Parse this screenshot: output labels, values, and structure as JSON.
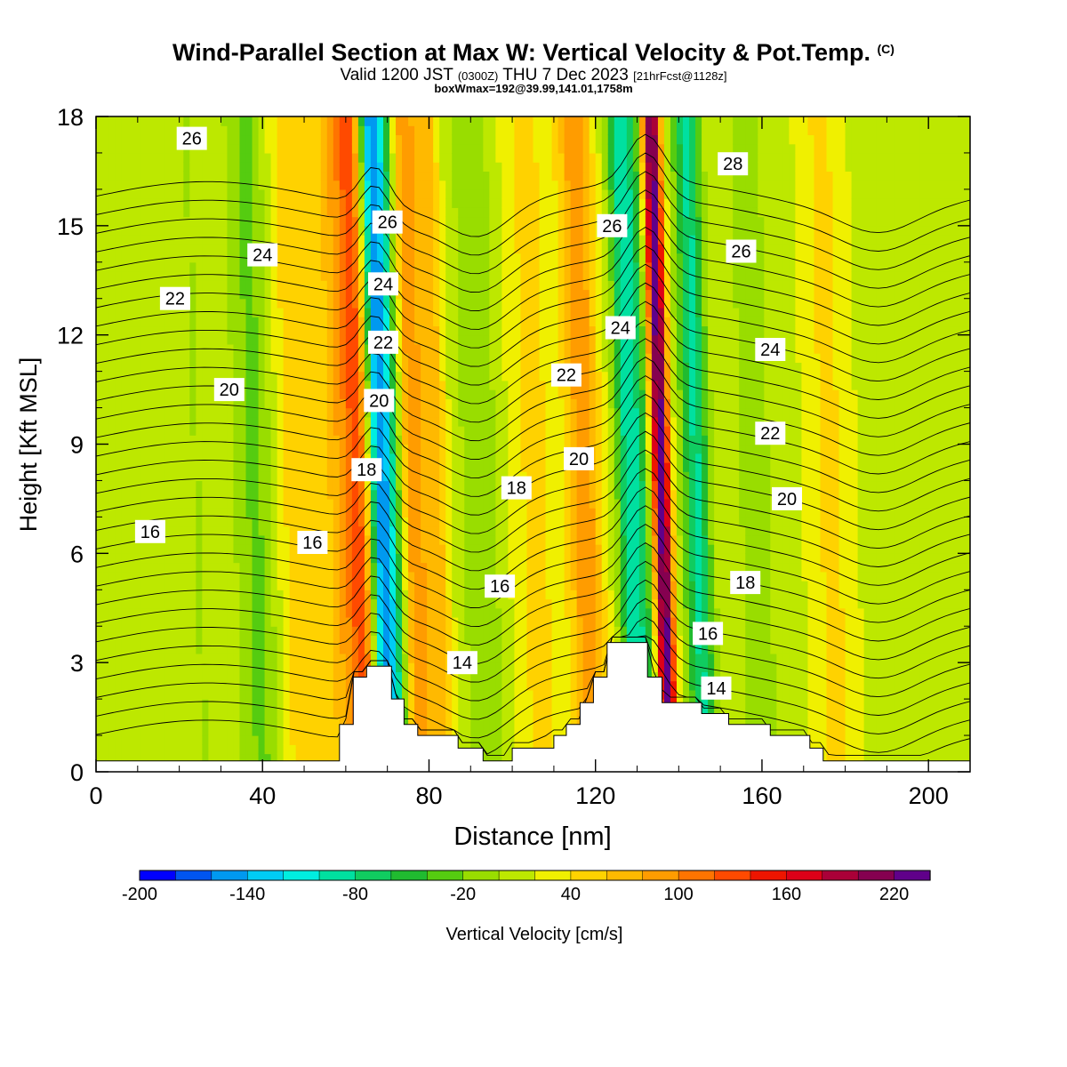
{
  "header": {
    "title_main": "Wind-Parallel Section at Max W: Vertical Velocity & Pot.Temp.",
    "title_copyright": "(C)",
    "subtitle_a": "Valid 1200 JST",
    "subtitle_utc": "(0300Z)",
    "subtitle_b": "THU 7 Dec 2023",
    "subtitle_fcst": "[21hrFcst@1128z]",
    "box_info": "boxWmax=192@39.99,141.01,1758m"
  },
  "chart_data": {
    "type": "heatmap",
    "title": "Wind-Parallel Section at Max W: Vertical Velocity & Pot.Temp.",
    "xlabel": "Distance [nm]",
    "ylabel": "Height [Kft MSL]",
    "xlim": [
      0,
      210
    ],
    "ylim": [
      0,
      18
    ],
    "xticks": [
      "0",
      "40",
      "80",
      "120",
      "160",
      "200"
    ],
    "yticks": [
      "0",
      "3",
      "6",
      "9",
      "12",
      "15",
      "18"
    ],
    "x_tick_values": [
      0,
      40,
      80,
      120,
      160,
      200
    ],
    "y_tick_values": [
      0,
      3,
      6,
      9,
      12,
      15,
      18
    ],
    "colorbar": {
      "label": "Vertical Velocity [cm/s]",
      "min": -200,
      "max": 260,
      "step": 20,
      "tick_labels": [
        "-200",
        "-140",
        "-80",
        "-20",
        "40",
        "100",
        "160",
        "220"
      ],
      "tick_values": [
        -200,
        -140,
        -80,
        -20,
        40,
        100,
        160,
        220
      ],
      "colors": [
        "#0000ff",
        "#0055f0",
        "#0099f0",
        "#00ccf5",
        "#00eee0",
        "#00e0a0",
        "#10cc60",
        "#20bb30",
        "#55cc10",
        "#99dd00",
        "#bde800",
        "#f0f000",
        "#ffd200",
        "#ffb900",
        "#ff9c00",
        "#ff7400",
        "#ff4a00",
        "#ee1500",
        "#dd0018",
        "#aa0038",
        "#850050",
        "#60008a"
      ]
    },
    "terrain_profile_kft": [
      [
        0,
        0.3
      ],
      [
        58.5,
        0.3
      ],
      [
        58.5,
        1.3
      ],
      [
        61.8,
        1.3
      ],
      [
        61.8,
        2.6
      ],
      [
        65,
        2.6
      ],
      [
        65,
        2.9
      ],
      [
        71,
        2.9
      ],
      [
        71,
        2.0
      ],
      [
        74,
        2.0
      ],
      [
        74,
        1.3
      ],
      [
        77.3,
        1.3
      ],
      [
        77.3,
        1.0
      ],
      [
        87,
        1.0
      ],
      [
        87,
        0.65
      ],
      [
        93,
        0.65
      ],
      [
        93,
        0.3
      ],
      [
        100,
        0.3
      ],
      [
        100,
        0.65
      ],
      [
        110,
        0.65
      ],
      [
        110,
        1.0
      ],
      [
        113,
        1.0
      ],
      [
        113,
        1.3
      ],
      [
        116.3,
        1.3
      ],
      [
        116.3,
        1.9
      ],
      [
        119.5,
        1.9
      ],
      [
        119.5,
        2.6
      ],
      [
        122.8,
        2.6
      ],
      [
        122.8,
        3.55
      ],
      [
        132.5,
        3.55
      ],
      [
        132.5,
        2.6
      ],
      [
        136,
        2.6
      ],
      [
        136,
        1.9
      ],
      [
        145.5,
        1.9
      ],
      [
        145.5,
        1.6
      ],
      [
        152,
        1.6
      ],
      [
        152,
        1.3
      ],
      [
        162,
        1.3
      ],
      [
        162,
        1.0
      ],
      [
        171.5,
        1.0
      ],
      [
        171.5,
        0.65
      ],
      [
        174.7,
        0.65
      ],
      [
        174.7,
        0.3
      ],
      [
        210,
        0.3
      ]
    ],
    "vertical_velocity_bands": [
      {
        "x": 13,
        "half_width": 6,
        "w": -5
      },
      {
        "x": 24,
        "half_width": 5,
        "w": -15
      },
      {
        "x": 38,
        "half_width": 5,
        "w": -40
      },
      {
        "x": 49,
        "half_width": 6,
        "w": 45
      },
      {
        "x": 59,
        "half_width": 4,
        "w": 60
      },
      {
        "x": 63,
        "half_width": 3,
        "w": 90
      },
      {
        "x": 68,
        "half_width": 2.6,
        "w": -170
      },
      {
        "x": 71,
        "half_width": 2,
        "w": -60
      },
      {
        "x": 76,
        "half_width": 2.5,
        "w": 80
      },
      {
        "x": 81,
        "half_width": 3,
        "w": 60
      },
      {
        "x": 92,
        "half_width": 5,
        "w": -30
      },
      {
        "x": 105,
        "half_width": 6,
        "w": 30
      },
      {
        "x": 117,
        "half_width": 4,
        "w": 80
      },
      {
        "x": 128,
        "half_width": 3,
        "w": -110
      },
      {
        "x": 131.5,
        "half_width": 2.2,
        "w": -40
      },
      {
        "x": 135.5,
        "half_width": 2.2,
        "w": 220
      },
      {
        "x": 139.5,
        "half_width": 2,
        "w": -10
      },
      {
        "x": 144,
        "half_width": 3,
        "w": -100
      },
      {
        "x": 158,
        "half_width": 4,
        "w": -30
      },
      {
        "x": 176,
        "half_width": 5,
        "w": 30
      },
      {
        "x": 195,
        "half_width": 6,
        "w": -15
      }
    ],
    "potential_temperature_labels": [
      {
        "text": "26",
        "x": 23,
        "y": 17.4
      },
      {
        "text": "24",
        "x": 40,
        "y": 14.2
      },
      {
        "text": "22",
        "x": 19,
        "y": 13.0
      },
      {
        "text": "20",
        "x": 32,
        "y": 10.5
      },
      {
        "text": "16",
        "x": 13,
        "y": 6.6
      },
      {
        "text": "16",
        "x": 52,
        "y": 6.3
      },
      {
        "text": "18",
        "x": 65,
        "y": 8.3
      },
      {
        "text": "20",
        "x": 68,
        "y": 10.2
      },
      {
        "text": "22",
        "x": 69,
        "y": 11.8
      },
      {
        "text": "24",
        "x": 69,
        "y": 13.4
      },
      {
        "text": "26",
        "x": 70,
        "y": 15.1
      },
      {
        "text": "14",
        "x": 88,
        "y": 3.0
      },
      {
        "text": "16",
        "x": 97,
        "y": 5.1
      },
      {
        "text": "18",
        "x": 101,
        "y": 7.8
      },
      {
        "text": "20",
        "x": 116,
        "y": 8.6
      },
      {
        "text": "22",
        "x": 113,
        "y": 10.9
      },
      {
        "text": "24",
        "x": 126,
        "y": 12.2
      },
      {
        "text": "26",
        "x": 124,
        "y": 15.0
      },
      {
        "text": "28",
        "x": 153,
        "y": 16.7
      },
      {
        "text": "26",
        "x": 155,
        "y": 14.3
      },
      {
        "text": "24",
        "x": 162,
        "y": 11.6
      },
      {
        "text": "22",
        "x": 162,
        "y": 9.3
      },
      {
        "text": "20",
        "x": 166,
        "y": 7.5
      },
      {
        "text": "18",
        "x": 156,
        "y": 5.2
      },
      {
        "text": "16",
        "x": 147,
        "y": 3.8
      },
      {
        "text": "14",
        "x": 149,
        "y": 2.3
      }
    ],
    "contour_levels": [
      13.5,
      14,
      14.5,
      15,
      15.5,
      16,
      16.5,
      17,
      17.5,
      18,
      18.5,
      19,
      19.5,
      20,
      20.5,
      21,
      21.5,
      22,
      22.5,
      23,
      23.5,
      24,
      24.5,
      25,
      25.5,
      26,
      26.5,
      27,
      27.5,
      28
    ]
  }
}
